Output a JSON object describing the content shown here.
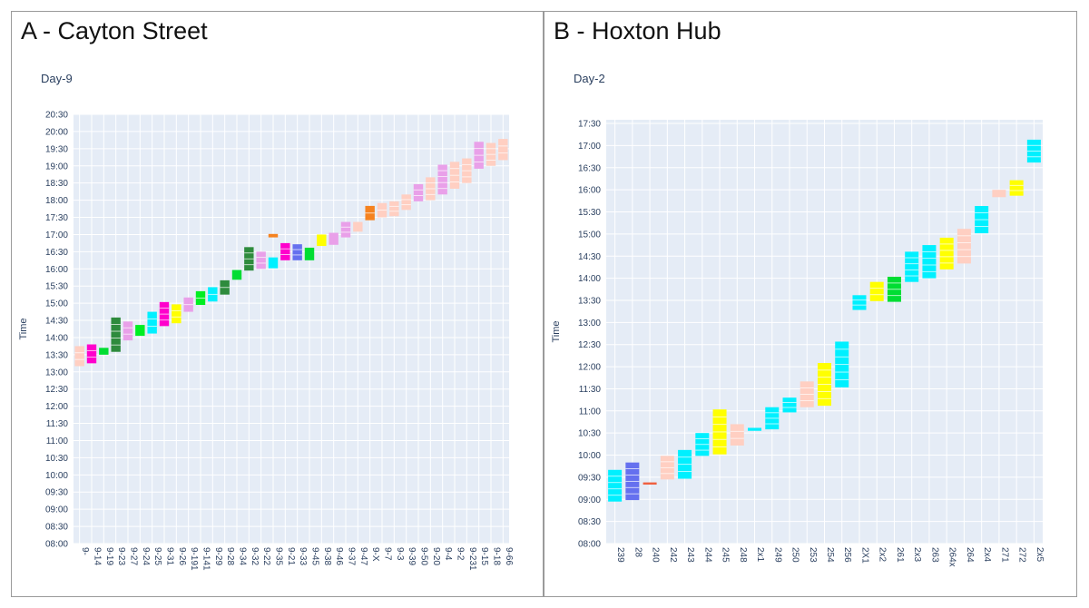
{
  "chart_data": [
    {
      "type": "gantt",
      "panel_title": "A - Cayton Street",
      "title": "Day-9",
      "ylabel": "Time",
      "xlabel": "",
      "y_ticks": [
        "08:00",
        "08:30",
        "09:00",
        "09:30",
        "10:00",
        "10:30",
        "11:00",
        "11:30",
        "12:00",
        "12:30",
        "13:00",
        "13:30",
        "14:00",
        "14:30",
        "15:00",
        "15:30",
        "16:00",
        "16:30",
        "17:00",
        "17:30",
        "18:00",
        "18:30",
        "19:00",
        "19:30",
        "20:00",
        "20:30"
      ],
      "ylim": [
        "08:00",
        "20:30"
      ],
      "categories": [
        "9-",
        "9-14",
        "9-19",
        "9-23",
        "9-27",
        "9-24",
        "9-25",
        "9-31",
        "9-26",
        "9-191",
        "9-141",
        "9-29",
        "9-28",
        "9-34",
        "9-32",
        "9-22",
        "9-35",
        "9-21",
        "9-33",
        "9-45",
        "9-38",
        "9-46",
        "9-37",
        "9-47",
        "9-X",
        "9-7",
        "9-3",
        "9-39",
        "9-50",
        "9-20",
        "9-4",
        "9-2",
        "9-231",
        "9-15",
        "9-18",
        "9-66"
      ],
      "bars": [
        {
          "category": "9-",
          "start": "13:10",
          "end": "13:45",
          "color": "#ffcfc2"
        },
        {
          "category": "9-14",
          "start": "13:15",
          "end": "13:48",
          "color": "#ff00cc"
        },
        {
          "category": "9-19",
          "start": "13:30",
          "end": "13:42",
          "color": "#00dd33"
        },
        {
          "category": "9-23",
          "start": "13:35",
          "end": "14:35",
          "color": "#2e8b3d"
        },
        {
          "category": "9-27",
          "start": "13:55",
          "end": "14:28",
          "color": "#e9a0e9"
        },
        {
          "category": "9-24",
          "start": "14:03",
          "end": "14:22",
          "color": "#00ee22"
        },
        {
          "category": "9-25",
          "start": "14:07",
          "end": "14:45",
          "color": "#00f0ff"
        },
        {
          "category": "9-31",
          "start": "14:20",
          "end": "15:02",
          "color": "#ff00cc"
        },
        {
          "category": "9-26",
          "start": "14:25",
          "end": "14:58",
          "color": "#ffff00"
        },
        {
          "category": "9-191",
          "start": "14:45",
          "end": "15:10",
          "color": "#e9a0e9"
        },
        {
          "category": "9-141",
          "start": "14:57",
          "end": "15:21",
          "color": "#00ee22"
        },
        {
          "category": "9-29",
          "start": "15:03",
          "end": "15:28",
          "color": "#00f0ff"
        },
        {
          "category": "9-28",
          "start": "15:15",
          "end": "15:40",
          "color": "#2e8b3d"
        },
        {
          "category": "9-34",
          "start": "15:41",
          "end": "15:58",
          "color": "#00dd33"
        },
        {
          "category": "9-32",
          "start": "15:57",
          "end": "16:38",
          "color": "#2e8b3d"
        },
        {
          "category": "9-22",
          "start": "16:00",
          "end": "16:30",
          "color": "#e9a0e9"
        },
        {
          "category": "9-35",
          "start": "16:01",
          "end": "16:20",
          "color": "#00f0ff"
        },
        {
          "category": "9-35",
          "start": "16:55",
          "end": "17:01",
          "color": "#f5821f"
        },
        {
          "category": "9-21",
          "start": "16:15",
          "end": "16:45",
          "color": "#ff00cc"
        },
        {
          "category": "9-33",
          "start": "16:15",
          "end": "16:43",
          "color": "#6570ef"
        },
        {
          "category": "9-45",
          "start": "16:15",
          "end": "16:37",
          "color": "#00dd33"
        },
        {
          "category": "9-38",
          "start": "16:40",
          "end": "17:00",
          "color": "#ffff00"
        },
        {
          "category": "9-46",
          "start": "16:42",
          "end": "17:03",
          "color": "#e9a0e9"
        },
        {
          "category": "9-37",
          "start": "16:55",
          "end": "17:22",
          "color": "#e9a0e9"
        },
        {
          "category": "9-47",
          "start": "17:05",
          "end": "17:22",
          "color": "#ffcfc2"
        },
        {
          "category": "9-X",
          "start": "17:25",
          "end": "17:50",
          "color": "#f5821f"
        },
        {
          "category": "9-7",
          "start": "17:30",
          "end": "17:55",
          "color": "#ffcfc2"
        },
        {
          "category": "9-3",
          "start": "17:32",
          "end": "17:58",
          "color": "#ffcfc2"
        },
        {
          "category": "9-39",
          "start": "17:43",
          "end": "18:10",
          "color": "#ffcfc2"
        },
        {
          "category": "9-50",
          "start": "17:58",
          "end": "18:28",
          "color": "#e9a0e9"
        },
        {
          "category": "9-20",
          "start": "18:00",
          "end": "18:40",
          "color": "#ffcfc2"
        },
        {
          "category": "9-4",
          "start": "18:10",
          "end": "19:02",
          "color": "#e9a0e9"
        },
        {
          "category": "9-2",
          "start": "18:20",
          "end": "19:07",
          "color": "#ffcfc2"
        },
        {
          "category": "9-231",
          "start": "18:30",
          "end": "19:13",
          "color": "#ffcfc2"
        },
        {
          "category": "9-15",
          "start": "18:55",
          "end": "19:42",
          "color": "#e9a0e9"
        },
        {
          "category": "9-18",
          "start": "19:00",
          "end": "19:40",
          "color": "#ffcfc2"
        },
        {
          "category": "9-66",
          "start": "19:10",
          "end": "19:47",
          "color": "#ffcfc2"
        }
      ]
    },
    {
      "type": "gantt",
      "panel_title": "B - Hoxton Hub",
      "title": "Day-2",
      "ylabel": "Time",
      "xlabel": "",
      "y_ticks": [
        "08:00",
        "08:30",
        "09:00",
        "09:30",
        "10:00",
        "10:30",
        "11:00",
        "11:30",
        "12:00",
        "12:30",
        "13:00",
        "13:30",
        "14:00",
        "14:30",
        "15:00",
        "15:30",
        "16:00",
        "16:30",
        "17:00",
        "17:30"
      ],
      "ylim": [
        "08:00",
        "17:35"
      ],
      "categories": [
        "239",
        "28",
        "240",
        "242",
        "243",
        "244",
        "245",
        "248",
        "2x1",
        "249",
        "250",
        "253",
        "254",
        "256",
        "2X1",
        "2x2",
        "261",
        "2x3",
        "263",
        "264x",
        "264",
        "2x4",
        "271",
        "272",
        "2x5"
      ],
      "bars": [
        {
          "category": "239",
          "start": "08:57",
          "end": "09:40",
          "color": "#00f0ff"
        },
        {
          "category": "28",
          "start": "08:59",
          "end": "09:50",
          "color": "#6570ef"
        },
        {
          "category": "240",
          "start": "09:20",
          "end": "09:23",
          "color": "#ef6040"
        },
        {
          "category": "242",
          "start": "09:27",
          "end": "09:59",
          "color": "#ffcfc2"
        },
        {
          "category": "243",
          "start": "09:28",
          "end": "10:07",
          "color": "#00f0ff"
        },
        {
          "category": "244",
          "start": "09:59",
          "end": "10:30",
          "color": "#00f0ff"
        },
        {
          "category": "245",
          "start": "10:01",
          "end": "11:02",
          "color": "#ffff00"
        },
        {
          "category": "248",
          "start": "10:13",
          "end": "10:42",
          "color": "#ffcfc2"
        },
        {
          "category": "2x1",
          "start": "10:33",
          "end": "10:37",
          "color": "#00f0ff"
        },
        {
          "category": "249",
          "start": "10:35",
          "end": "11:05",
          "color": "#00f0ff"
        },
        {
          "category": "250",
          "start": "10:58",
          "end": "11:18",
          "color": "#00f0ff"
        },
        {
          "category": "253",
          "start": "11:05",
          "end": "11:40",
          "color": "#ffcfc2"
        },
        {
          "category": "254",
          "start": "11:07",
          "end": "12:05",
          "color": "#ffff00"
        },
        {
          "category": "256",
          "start": "11:32",
          "end": "12:34",
          "color": "#00f0ff"
        },
        {
          "category": "2X1",
          "start": "13:17",
          "end": "13:37",
          "color": "#00f0ff"
        },
        {
          "category": "2x2",
          "start": "13:29",
          "end": "13:55",
          "color": "#ffff00"
        },
        {
          "category": "261",
          "start": "13:28",
          "end": "14:02",
          "color": "#00dd33"
        },
        {
          "category": "2x3",
          "start": "13:55",
          "end": "14:36",
          "color": "#00f0ff"
        },
        {
          "category": "263",
          "start": "14:00",
          "end": "14:45",
          "color": "#00f0ff"
        },
        {
          "category": "264x",
          "start": "14:12",
          "end": "14:55",
          "color": "#ffff00"
        },
        {
          "category": "264",
          "start": "14:20",
          "end": "15:07",
          "color": "#ffcfc2"
        },
        {
          "category": "2x4",
          "start": "15:01",
          "end": "15:38",
          "color": "#00f0ff"
        },
        {
          "category": "271",
          "start": "15:50",
          "end": "16:00",
          "color": "#ffcfc2"
        },
        {
          "category": "272",
          "start": "15:52",
          "end": "16:13",
          "color": "#ffff00"
        },
        {
          "category": "2x5",
          "start": "16:37",
          "end": "17:08",
          "color": "#00f0ff"
        }
      ]
    }
  ],
  "style": {
    "plot_bg": "#e5ecf6",
    "grid": "#ffffff",
    "tick_color": "#2a3f5f",
    "panel_border": "#9a9a9a"
  }
}
